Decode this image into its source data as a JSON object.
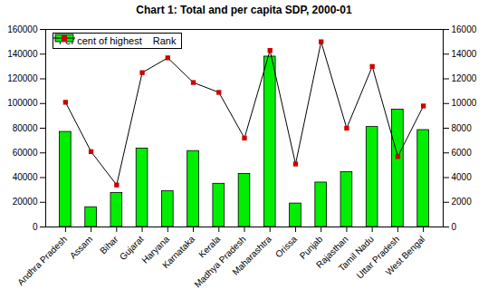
{
  "chart_data": {
    "type": "bar",
    "title": "Chart 1: Total and per capita SDP, 2000-01",
    "categories": [
      "Andhra Pradesh",
      "Assam",
      "Bihar",
      "Gujarat",
      "Haryana",
      "Karnataka",
      "Kerala",
      "Madhya Pradesh",
      "Maharashtra",
      "Orissa",
      "Punjab",
      "Rajasthan",
      "Tamil Nadu",
      "Uttar Pradesh",
      "West Bengal"
    ],
    "series": [
      {
        "name": "Per cent of highest",
        "type": "bar",
        "color": "#00ee00",
        "values": [
          77000,
          16000,
          27500,
          63500,
          29000,
          61500,
          35000,
          43000,
          138000,
          19000,
          36000,
          44500,
          81000,
          95000,
          78500
        ]
      },
      {
        "name": "Rank",
        "type": "line",
        "axis": "y2",
        "color": "#cc0000",
        "marker": "square",
        "values": [
          10100,
          6100,
          3400,
          12500,
          13700,
          11700,
          10900,
          7200,
          14300,
          5100,
          15000,
          8000,
          13000,
          5700,
          9800
        ]
      }
    ],
    "ylim": [
      0,
      160000
    ],
    "yticks": [
      0,
      20000,
      40000,
      60000,
      80000,
      100000,
      120000,
      140000,
      160000
    ],
    "y2lim": [
      0,
      16000
    ],
    "y2ticks": [
      0,
      2000,
      4000,
      6000,
      8000,
      10000,
      12000,
      14000,
      16000
    ],
    "legend": "top-left",
    "grid": false
  }
}
